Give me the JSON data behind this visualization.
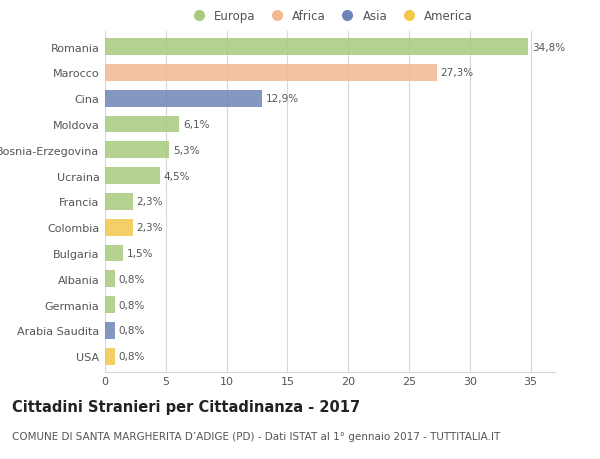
{
  "categories": [
    "Romania",
    "Marocco",
    "Cina",
    "Moldova",
    "Bosnia-Erzegovina",
    "Ucraina",
    "Francia",
    "Colombia",
    "Bulgaria",
    "Albania",
    "Germania",
    "Arabia Saudita",
    "USA"
  ],
  "values": [
    34.8,
    27.3,
    12.9,
    6.1,
    5.3,
    4.5,
    2.3,
    2.3,
    1.5,
    0.8,
    0.8,
    0.8,
    0.8
  ],
  "labels": [
    "34,8%",
    "27,3%",
    "12,9%",
    "6,1%",
    "5,3%",
    "4,5%",
    "2,3%",
    "2,3%",
    "1,5%",
    "0,8%",
    "0,8%",
    "0,8%",
    "0,8%"
  ],
  "colors": [
    "#a8c97f",
    "#f0b990",
    "#6e84b8",
    "#a8c97f",
    "#a8c97f",
    "#a8c97f",
    "#a8c97f",
    "#f0c84a",
    "#a8c97f",
    "#a8c97f",
    "#a8c97f",
    "#6e84b8",
    "#f0c84a"
  ],
  "legend_labels": [
    "Europa",
    "Africa",
    "Asia",
    "America"
  ],
  "legend_colors": [
    "#a8c97f",
    "#f0b990",
    "#6e84b8",
    "#f0c84a"
  ],
  "title": "Cittadini Stranieri per Cittadinanza - 2017",
  "subtitle": "COMUNE DI SANTA MARGHERITA D’ADIGE (PD) - Dati ISTAT al 1° gennaio 2017 - TUTTITALIA.IT",
  "xlim": [
    0,
    37
  ],
  "xticks": [
    0,
    5,
    10,
    15,
    20,
    25,
    30,
    35
  ],
  "background_color": "#ffffff",
  "grid_color": "#d8d8d8",
  "bar_height": 0.65,
  "title_fontsize": 10.5,
  "subtitle_fontsize": 7.5,
  "label_fontsize": 7.5,
  "tick_fontsize": 8,
  "legend_fontsize": 8.5
}
